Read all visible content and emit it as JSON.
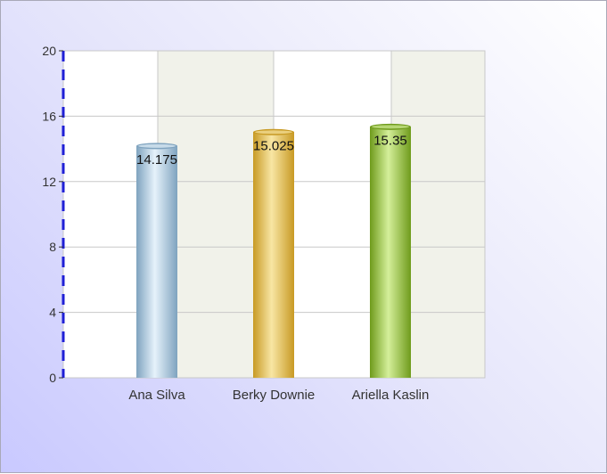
{
  "chart_data": {
    "type": "bar",
    "categories": [
      "Ana Silva",
      "Berky Downie",
      "Ariella Kaslin"
    ],
    "values": [
      14.175,
      15.025,
      15.35
    ],
    "data_labels": [
      "14.175",
      "15.025",
      "15.35"
    ],
    "y_ticks": [
      "0",
      "4",
      "8",
      "12",
      "16",
      "20"
    ],
    "ylim": [
      0,
      20
    ],
    "grid": true,
    "legend": "none",
    "colors": {
      "bar_light": [
        "#e6f2fb",
        "#f8e6a4",
        "#d4ef9a"
      ],
      "bar_dark": [
        "#7fa3bf",
        "#c89a24",
        "#6f9b1c"
      ],
      "axis": "#1f1fd6",
      "grid": "#c8c8c8",
      "band": "#f1f2ea"
    }
  }
}
